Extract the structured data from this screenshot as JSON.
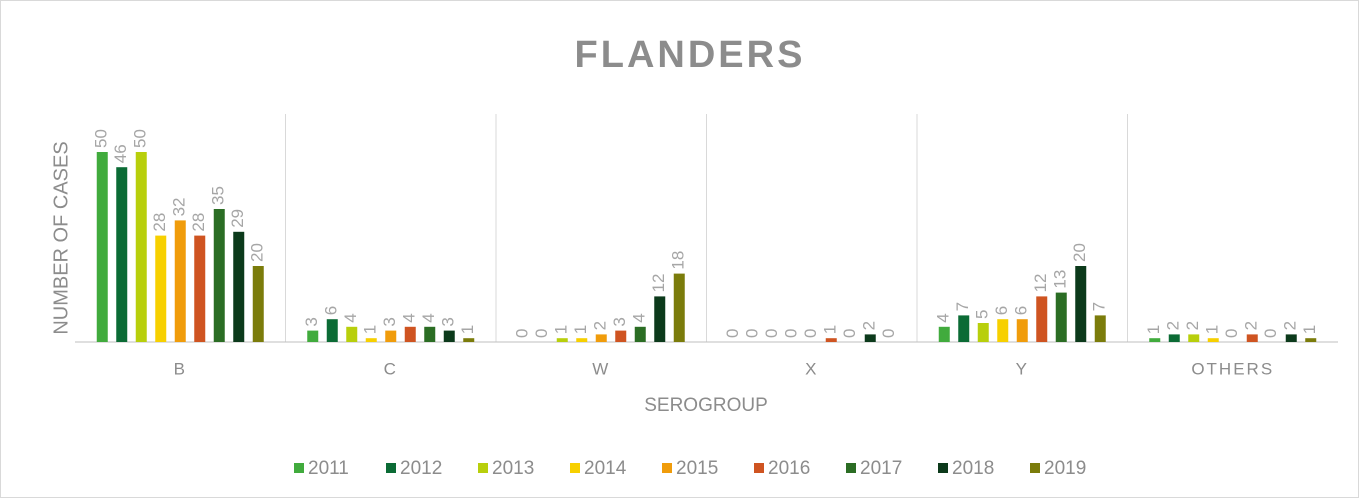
{
  "chart_data": {
    "type": "bar",
    "title": "FLANDERS",
    "y_label": "NUMBER OF CASES",
    "x_label": "SEROGROUP",
    "categories": [
      "B",
      "C",
      "W",
      "X",
      "Y",
      "OTHERS"
    ],
    "ylim": [
      0,
      60
    ],
    "legend": "bottom",
    "series": [
      {
        "name": "2011",
        "color": "#41ab3d",
        "values": [
          50,
          3,
          0,
          0,
          4,
          1
        ]
      },
      {
        "name": "2012",
        "color": "#0b6b35",
        "values": [
          46,
          6,
          0,
          0,
          7,
          2
        ]
      },
      {
        "name": "2013",
        "color": "#b8cf0c",
        "values": [
          50,
          4,
          1,
          0,
          5,
          2
        ]
      },
      {
        "name": "2014",
        "color": "#f7d000",
        "values": [
          28,
          1,
          1,
          0,
          6,
          1
        ]
      },
      {
        "name": "2015",
        "color": "#f09c0b",
        "values": [
          32,
          3,
          2,
          0,
          6,
          0
        ]
      },
      {
        "name": "2016",
        "color": "#cf5421",
        "values": [
          28,
          4,
          3,
          1,
          12,
          2
        ]
      },
      {
        "name": "2017",
        "color": "#2b6d24",
        "values": [
          35,
          4,
          4,
          0,
          13,
          0
        ]
      },
      {
        "name": "2018",
        "color": "#0c3a1b",
        "values": [
          29,
          3,
          12,
          2,
          20,
          2
        ]
      },
      {
        "name": "2019",
        "color": "#7b7c0b",
        "values": [
          20,
          1,
          18,
          0,
          7,
          1
        ]
      }
    ]
  }
}
